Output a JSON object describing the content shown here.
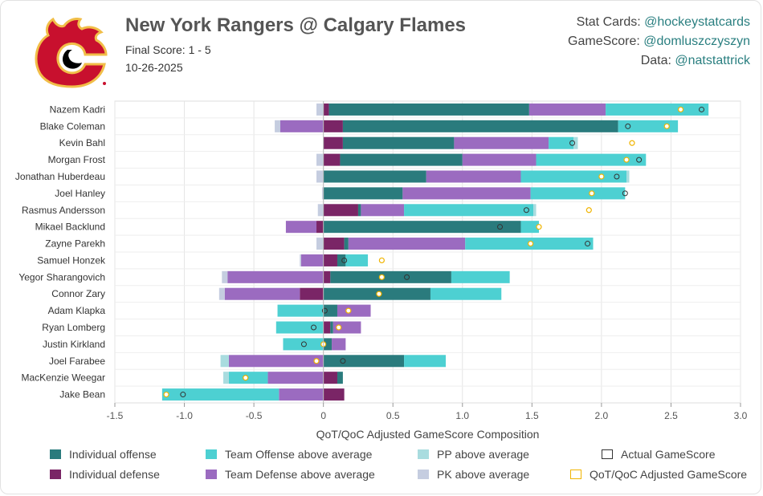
{
  "header": {
    "title": "New York Rangers @ Calgary Flames",
    "final_score": "Final Score: 1 - 5",
    "date": "10-26-2025"
  },
  "credits": {
    "stat_cards_label": "Stat Cards: ",
    "stat_cards_handle": "@hockeystatcards",
    "gamescore_label": "GameScore: ",
    "gamescore_handle": "@domluszczyszyn",
    "data_label": "Data: ",
    "data_handle": "@natstattrick"
  },
  "colors": {
    "ind_off": "#2a7b7d",
    "ind_def": "#7a2566",
    "team_off": "#4dd0d2",
    "team_def": "#9b6bc0",
    "pp": "#a9dcdf",
    "pk": "#c5cde0",
    "actual": "#333333",
    "adjusted": "#f0b400",
    "logo_red": "#c8102e",
    "logo_gold": "#f1be48"
  },
  "chart_data": {
    "type": "bar",
    "orientation": "horizontal",
    "stacked": true,
    "xlabel": "QoT/QoC Adjusted GameScore Composition",
    "xlim": [
      -1.5,
      3.0
    ],
    "xticks": [
      "-1.5",
      "-1.0",
      "-0.5",
      "0",
      "0.5",
      "1.0",
      "1.5",
      "2.0",
      "2.5",
      "3.0"
    ],
    "grid": true,
    "legend": [
      {
        "key": "ind_off",
        "label": "Individual offense"
      },
      {
        "key": "team_off",
        "label": "Team Offense above average"
      },
      {
        "key": "pp",
        "label": "PP above average"
      },
      {
        "key": "actual",
        "label": "Actual GameScore"
      },
      {
        "key": "ind_def",
        "label": "Individual defense"
      },
      {
        "key": "team_def",
        "label": "Team Defense above average"
      },
      {
        "key": "pk",
        "label": "PK above average"
      },
      {
        "key": "adjusted",
        "label": "QoT/QoC Adjusted GameScore"
      }
    ],
    "players": [
      {
        "name": "Nazem Kadri",
        "ind_off": 1.44,
        "ind_def": 0.04,
        "team_off": 0.74,
        "team_def": 0.55,
        "pp": 0.0,
        "pk": -0.05,
        "actual": 2.72,
        "adjusted": 2.57
      },
      {
        "name": "Blake Coleman",
        "ind_off": 1.98,
        "ind_def": 0.14,
        "team_off": 0.43,
        "team_def": -0.31,
        "pp": 0.0,
        "pk": -0.04,
        "actual": 2.19,
        "adjusted": 2.47
      },
      {
        "name": "Kevin Bahl",
        "ind_off": 0.8,
        "ind_def": 0.14,
        "team_off": 0.18,
        "team_def": 0.68,
        "pp": 0.03,
        "pk": 0.0,
        "actual": 1.79,
        "adjusted": 2.22
      },
      {
        "name": "Morgan Frost",
        "ind_off": 0.88,
        "ind_def": 0.12,
        "team_off": 0.79,
        "team_def": 0.53,
        "pp": 0.0,
        "pk": -0.05,
        "actual": 2.27,
        "adjusted": 2.18
      },
      {
        "name": "Jonathan Huberdeau",
        "ind_off": 0.74,
        "ind_def": 0.0,
        "team_off": 0.76,
        "team_def": 0.68,
        "pp": 0.02,
        "pk": -0.05,
        "actual": 2.11,
        "adjusted": 2.0
      },
      {
        "name": "Joel Hanley",
        "ind_off": 0.57,
        "ind_def": 0.0,
        "team_off": 0.68,
        "team_def": 0.92,
        "pp": 0.0,
        "pk": -0.01,
        "actual": 2.17,
        "adjusted": 1.93
      },
      {
        "name": "Rasmus Andersson",
        "ind_off": 0.02,
        "ind_def": 0.25,
        "team_off": 0.93,
        "team_def": 0.31,
        "pp": 0.02,
        "pk": -0.04,
        "actual": 1.46,
        "adjusted": 1.91
      },
      {
        "name": "Mikael Backlund",
        "ind_off": 1.42,
        "ind_def": -0.05,
        "team_off": 0.13,
        "team_def": -0.22,
        "pp": 0.0,
        "pk": 0.0,
        "actual": 1.27,
        "adjusted": 1.55
      },
      {
        "name": "Zayne Parekh",
        "ind_off": 0.03,
        "ind_def": 0.15,
        "team_off": 0.92,
        "team_def": 0.84,
        "pp": 0.0,
        "pk": -0.05,
        "actual": 1.9,
        "adjusted": 1.49
      },
      {
        "name": "Samuel Honzek",
        "ind_off": 0.06,
        "ind_def": 0.1,
        "team_off": 0.16,
        "team_def": -0.16,
        "pp": 0.0,
        "pk": -0.01,
        "actual": 0.15,
        "adjusted": 0.42
      },
      {
        "name": "Yegor Sharangovich",
        "ind_off": 0.87,
        "ind_def": 0.05,
        "team_off": 0.42,
        "team_def": -0.69,
        "pp": 0.0,
        "pk": -0.04,
        "actual": 0.6,
        "adjusted": 0.42
      },
      {
        "name": "Connor Zary",
        "ind_off": 0.77,
        "ind_def": -0.17,
        "team_off": 0.51,
        "team_def": -0.54,
        "pp": 0.0,
        "pk": -0.04,
        "actual": 0.4,
        "adjusted": 0.4
      },
      {
        "name": "Adam Klapka",
        "ind_off": 0.1,
        "ind_def": 0.0,
        "team_off": -0.33,
        "team_def": 0.24,
        "pp": 0.0,
        "pk": 0.0,
        "actual": 0.01,
        "adjusted": 0.18
      },
      {
        "name": "Ryan Lomberg",
        "ind_off": 0.02,
        "ind_def": 0.05,
        "team_off": -0.34,
        "team_def": 0.2,
        "pp": 0.0,
        "pk": 0.0,
        "actual": -0.07,
        "adjusted": 0.11
      },
      {
        "name": "Justin Kirkland",
        "ind_off": 0.06,
        "ind_def": 0.0,
        "team_off": -0.29,
        "team_def": 0.1,
        "pp": 0.0,
        "pk": 0.0,
        "actual": -0.14,
        "adjusted": 0.0
      },
      {
        "name": "Joel Farabee",
        "ind_off": 0.58,
        "ind_def": 0.0,
        "team_off": 0.3,
        "team_def": -0.68,
        "pp": -0.06,
        "pk": 0.0,
        "actual": 0.14,
        "adjusted": -0.05
      },
      {
        "name": "MacKenzie Weegar",
        "ind_off": 0.04,
        "ind_def": 0.1,
        "team_off": -0.28,
        "team_def": -0.4,
        "pp": -0.04,
        "pk": 0.0,
        "actual": -0.56,
        "adjusted": -0.56
      },
      {
        "name": "Jake Bean",
        "ind_off": 0.0,
        "ind_def": 0.15,
        "team_off": -0.84,
        "team_def": -0.32,
        "pp": 0.0,
        "pk": 0.0,
        "actual": -1.01,
        "adjusted": -1.13
      }
    ]
  }
}
